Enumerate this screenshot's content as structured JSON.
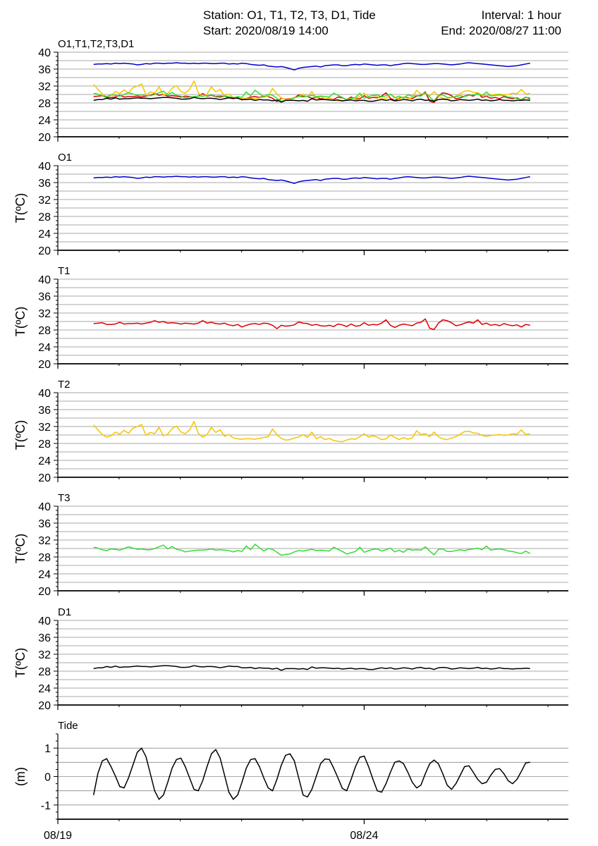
{
  "header": {
    "station": "Station: O1, T1, T2, T3, D1, Tide",
    "interval": "Interval: 1 hour",
    "start": "Start: 2020/08/19 14:00",
    "end": "End: 2020/08/27 11:00"
  },
  "x_axis": {
    "ticks": [
      "08/19",
      "08/24"
    ],
    "start_time": "2020/08/19 14:00",
    "end_time": "2020/08/27 11:00"
  },
  "colors": {
    "O1": "#0000cc",
    "T1": "#dd0000",
    "T2": "#f5c400",
    "T3": "#33dd33",
    "D1": "#000000",
    "Tide": "#000000",
    "grid": "#8c8c8c"
  },
  "chart_data": [
    {
      "type": "line",
      "title": "O1,T1,T2,T3,D1",
      "ylabel": "",
      "ylim": [
        20,
        40
      ],
      "yticks": [
        "20",
        "24",
        "28",
        "32",
        "36",
        "40"
      ],
      "series": [
        {
          "name": "O1",
          "key": "O1"
        },
        {
          "name": "T1",
          "key": "T1"
        },
        {
          "name": "T2",
          "key": "T2"
        },
        {
          "name": "T3",
          "key": "T3"
        },
        {
          "name": "D1",
          "key": "D1"
        }
      ]
    },
    {
      "type": "line",
      "title": "O1",
      "ylabel": "T(ºC)",
      "ylim": [
        20,
        40
      ],
      "yticks": [
        "20",
        "24",
        "28",
        "32",
        "36",
        "40"
      ],
      "series": [
        {
          "name": "O1",
          "key": "O1"
        }
      ]
    },
    {
      "type": "line",
      "title": "T1",
      "ylabel": "T(ºC)",
      "ylim": [
        20,
        40
      ],
      "yticks": [
        "20",
        "24",
        "28",
        "32",
        "36",
        "40"
      ],
      "series": [
        {
          "name": "T1",
          "key": "T1"
        }
      ]
    },
    {
      "type": "line",
      "title": "T2",
      "ylabel": "T(ºC)",
      "ylim": [
        20,
        40
      ],
      "yticks": [
        "20",
        "24",
        "28",
        "32",
        "36",
        "40"
      ],
      "series": [
        {
          "name": "T2",
          "key": "T2"
        }
      ]
    },
    {
      "type": "line",
      "title": "T3",
      "ylabel": "T(ºC)",
      "ylim": [
        20,
        40
      ],
      "yticks": [
        "20",
        "24",
        "28",
        "32",
        "36",
        "40"
      ],
      "series": [
        {
          "name": "T3",
          "key": "T3"
        }
      ]
    },
    {
      "type": "line",
      "title": "D1",
      "ylabel": "T(ºC)",
      "ylim": [
        20,
        40
      ],
      "yticks": [
        "20",
        "24",
        "28",
        "32",
        "36",
        "40"
      ],
      "series": [
        {
          "name": "D1",
          "key": "D1"
        }
      ]
    },
    {
      "type": "line",
      "title": "Tide",
      "ylabel": "(m)",
      "ylim": [
        -1.5,
        1.5
      ],
      "yticks": [
        "1",
        "0",
        "-1"
      ],
      "series": [
        {
          "name": "Tide",
          "key": "Tide"
        }
      ]
    }
  ],
  "series_data": {
    "O1": [
      37.1,
      37.2,
      37.2,
      37.3,
      37.2,
      37.4,
      37.3,
      37.4,
      37.3,
      37.2,
      37.0,
      37.1,
      37.3,
      37.2,
      37.4,
      37.4,
      37.3,
      37.4,
      37.4,
      37.5,
      37.4,
      37.4,
      37.3,
      37.4,
      37.3,
      37.4,
      37.4,
      37.3,
      37.3,
      37.4,
      37.4,
      37.2,
      37.3,
      37.2,
      37.4,
      37.3,
      37.1,
      37.0,
      36.9,
      37.0,
      36.7,
      36.6,
      36.5,
      36.6,
      36.4,
      36.1,
      35.8,
      36.2,
      36.4,
      36.5,
      36.6,
      36.7,
      36.5,
      36.8,
      36.9,
      37.0,
      37.0,
      36.8,
      36.8,
      37.0,
      37.1,
      37.0,
      37.2,
      37.1,
      37.0,
      36.9,
      37.0,
      37.0,
      36.8,
      37.0,
      37.1,
      37.3,
      37.4,
      37.3,
      37.2,
      37.1,
      37.1,
      37.2,
      37.3,
      37.3,
      37.2,
      37.1,
      37.0,
      37.1,
      37.2,
      37.4,
      37.5,
      37.4,
      37.3,
      37.2,
      37.1,
      37.0,
      36.9,
      36.8,
      36.7,
      36.6,
      36.7,
      36.8,
      37.0,
      37.2,
      37.4
    ],
    "T1": [
      29.5,
      29.6,
      29.7,
      29.3,
      29.3,
      29.4,
      29.8,
      29.4,
      29.5,
      29.5,
      29.6,
      29.4,
      29.6,
      29.8,
      30.2,
      29.8,
      30.0,
      29.6,
      29.7,
      29.6,
      29.4,
      29.6,
      29.5,
      29.4,
      29.6,
      30.2,
      29.6,
      29.8,
      29.5,
      29.4,
      29.6,
      29.2,
      29.0,
      29.3,
      28.7,
      29.1,
      29.4,
      29.5,
      29.3,
      29.6,
      29.5,
      29.1,
      28.3,
      29.1,
      28.9,
      29.0,
      29.2,
      29.9,
      29.6,
      29.5,
      29.1,
      29.3,
      29.0,
      28.9,
      29.1,
      28.8,
      29.4,
      29.2,
      28.8,
      29.4,
      28.9,
      29.0,
      29.7,
      29.1,
      29.3,
      29.2,
      29.6,
      30.4,
      29.1,
      28.6,
      29.1,
      29.4,
      29.2,
      29.0,
      29.6,
      29.8,
      30.6,
      28.4,
      28.1,
      29.6,
      30.4,
      30.2,
      29.7,
      29.0,
      29.2,
      29.6,
      29.9,
      29.6,
      30.4,
      29.3,
      29.6,
      29.1,
      29.3,
      29.0,
      29.5,
      29.2,
      29.0,
      29.2,
      28.7,
      29.3,
      29.1
    ],
    "T2": [
      32.4,
      31.2,
      30.1,
      29.5,
      29.8,
      30.7,
      30.2,
      31.1,
      30.4,
      31.6,
      32.0,
      32.5,
      29.9,
      30.6,
      30.3,
      31.8,
      29.8,
      30.2,
      31.5,
      32.1,
      30.7,
      30.3,
      31.2,
      33.2,
      30.4,
      29.5,
      30.1,
      31.8,
      30.6,
      31.2,
      29.7,
      30.1,
      29.3,
      29.1,
      29.0,
      29.1,
      29.1,
      29.0,
      29.2,
      29.4,
      29.6,
      31.4,
      30.1,
      29.2,
      28.8,
      28.9,
      29.3,
      29.5,
      30.1,
      29.4,
      30.7,
      29.1,
      29.6,
      28.9,
      29.2,
      28.7,
      28.5,
      28.4,
      28.8,
      29.1,
      29.0,
      29.6,
      30.3,
      29.5,
      29.8,
      29.5,
      28.9,
      29.1,
      30.0,
      29.4,
      28.9,
      29.4,
      29.0,
      29.3,
      31.0,
      30.1,
      30.3,
      29.6,
      30.7,
      29.6,
      29.1,
      28.9,
      29.3,
      29.6,
      30.2,
      30.8,
      30.9,
      30.5,
      30.4,
      29.9,
      29.7,
      29.9,
      30.0,
      30.1,
      29.9,
      30.0,
      30.3,
      30.2,
      31.2,
      30.1,
      30.3
    ],
    "T3": [
      30.3,
      30.1,
      29.7,
      29.5,
      29.9,
      29.8,
      29.6,
      30.0,
      30.4,
      30.1,
      29.8,
      29.9,
      29.7,
      29.7,
      30.0,
      30.4,
      30.8,
      29.9,
      30.5,
      29.8,
      29.6,
      29.2,
      29.4,
      29.5,
      29.6,
      29.6,
      29.7,
      29.9,
      29.6,
      29.7,
      29.6,
      29.5,
      29.2,
      29.5,
      29.3,
      30.6,
      29.7,
      31.0,
      30.2,
      29.4,
      30.0,
      29.8,
      29.1,
      28.4,
      28.6,
      28.7,
      29.2,
      29.5,
      29.4,
      29.6,
      29.8,
      29.5,
      29.6,
      29.5,
      29.4,
      30.3,
      29.8,
      29.3,
      28.7,
      29.0,
      29.3,
      30.3,
      29.1,
      29.5,
      29.8,
      29.9,
      29.4,
      29.7,
      30.1,
      29.2,
      29.6,
      29.1,
      29.9,
      29.6,
      29.7,
      29.6,
      30.4,
      29.4,
      28.5,
      29.8,
      29.9,
      29.3,
      29.3,
      29.5,
      29.7,
      29.5,
      29.8,
      29.9,
      30.1,
      29.7,
      30.6,
      29.6,
      29.8,
      29.9,
      29.7,
      29.4,
      29.3,
      29.0,
      28.8,
      29.4,
      28.8
    ],
    "D1": [
      28.6,
      28.8,
      28.8,
      29.1,
      28.9,
      29.2,
      28.9,
      29.0,
      29.0,
      29.1,
      29.2,
      29.1,
      29.1,
      29.0,
      29.1,
      29.2,
      29.3,
      29.3,
      29.2,
      29.1,
      28.9,
      28.9,
      29.0,
      29.3,
      29.1,
      29.0,
      29.1,
      29.1,
      29.0,
      28.8,
      29.0,
      29.2,
      29.1,
      29.1,
      28.8,
      28.8,
      28.9,
      28.6,
      28.8,
      28.7,
      28.7,
      28.5,
      28.7,
      28.2,
      28.6,
      28.6,
      28.6,
      28.5,
      28.6,
      28.4,
      29.0,
      28.7,
      28.8,
      28.8,
      28.7,
      28.6,
      28.7,
      28.5,
      28.6,
      28.7,
      28.5,
      28.6,
      28.6,
      28.4,
      28.4,
      28.6,
      28.8,
      28.6,
      28.8,
      28.5,
      28.6,
      28.8,
      28.7,
      28.5,
      28.8,
      28.9,
      28.6,
      28.7,
      28.4,
      28.8,
      28.9,
      28.8,
      28.5,
      28.6,
      28.8,
      28.7,
      28.6,
      28.7,
      28.9,
      28.6,
      28.7,
      28.5,
      28.6,
      28.8,
      28.6,
      28.6,
      28.5,
      28.6,
      28.6,
      28.7,
      28.6
    ],
    "Tide": [
      -0.65,
      0.12,
      0.55,
      0.63,
      0.35,
      0.02,
      -0.35,
      -0.4,
      -0.05,
      0.4,
      0.85,
      1.0,
      0.7,
      0.1,
      -0.5,
      -0.8,
      -0.65,
      -0.2,
      0.3,
      0.6,
      0.65,
      0.35,
      -0.05,
      -0.45,
      -0.5,
      -0.15,
      0.35,
      0.8,
      0.95,
      0.65,
      0.05,
      -0.55,
      -0.8,
      -0.65,
      -0.2,
      0.3,
      0.6,
      0.63,
      0.35,
      -0.05,
      -0.4,
      -0.5,
      -0.1,
      0.4,
      0.75,
      0.8,
      0.55,
      -0.05,
      -0.65,
      -0.72,
      -0.45,
      0.0,
      0.45,
      0.62,
      0.6,
      0.3,
      -0.05,
      -0.42,
      -0.5,
      -0.1,
      0.35,
      0.68,
      0.72,
      0.35,
      -0.1,
      -0.5,
      -0.55,
      -0.25,
      0.15,
      0.5,
      0.55,
      0.45,
      0.15,
      -0.2,
      -0.4,
      -0.3,
      0.1,
      0.45,
      0.58,
      0.45,
      0.1,
      -0.3,
      -0.45,
      -0.25,
      0.05,
      0.35,
      0.38,
      0.15,
      -0.1,
      -0.25,
      -0.2,
      0.05,
      0.25,
      0.28,
      0.1,
      -0.15,
      -0.25,
      -0.1,
      0.18,
      0.48,
      0.5
    ]
  }
}
